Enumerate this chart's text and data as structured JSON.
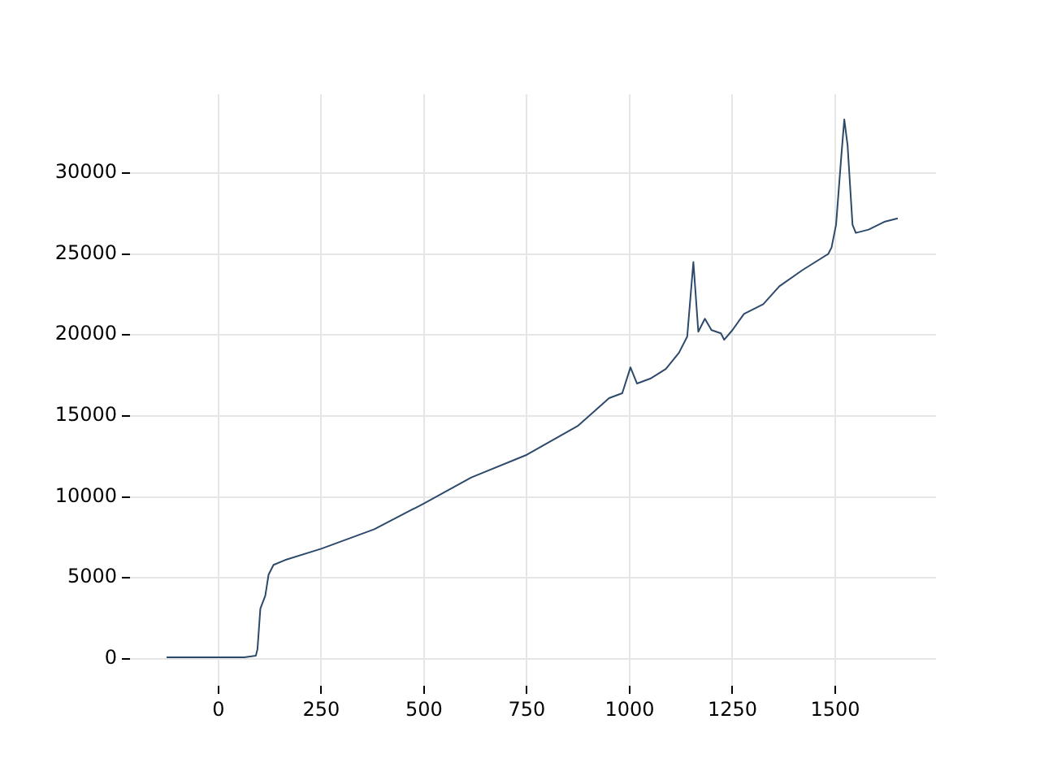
{
  "chart_data": {
    "type": "line",
    "x": [
      -126,
      63,
      91,
      95,
      102,
      114,
      122,
      134,
      162,
      250,
      379,
      500,
      615,
      750,
      875,
      950,
      982,
      1002,
      1018,
      1050,
      1088,
      1120,
      1140,
      1155,
      1167,
      1183,
      1199,
      1222,
      1230,
      1250,
      1278,
      1325,
      1364,
      1420,
      1483,
      1491,
      1502,
      1514,
      1522,
      1530,
      1542,
      1550,
      1581,
      1621,
      1652
    ],
    "series": [
      {
        "color": "#2d4a6b",
        "values": [
          100,
          100,
          200,
          600,
          3100,
          3900,
          5200,
          5800,
          6100,
          6800,
          8000,
          9600,
          11200,
          12600,
          14400,
          16100,
          16400,
          18000,
          17000,
          17300,
          17900,
          18900,
          19900,
          24500,
          20200,
          21000,
          20300,
          20100,
          19700,
          20300,
          21300,
          21900,
          23000,
          24000,
          25000,
          25400,
          26800,
          30800,
          33300,
          31700,
          26800,
          26300,
          26500,
          27000,
          27200
        ]
      }
    ],
    "xlim": [
      -215,
      1745
    ],
    "xticks": [
      0,
      250,
      500,
      750,
      1000,
      1250,
      1500
    ],
    "ylim": [
      -1660,
      34860
    ],
    "yticks": [
      0,
      5000,
      10000,
      15000,
      20000,
      25000,
      30000
    ],
    "grid": true,
    "legend": false,
    "marker": "none",
    "line_style": "solid"
  }
}
